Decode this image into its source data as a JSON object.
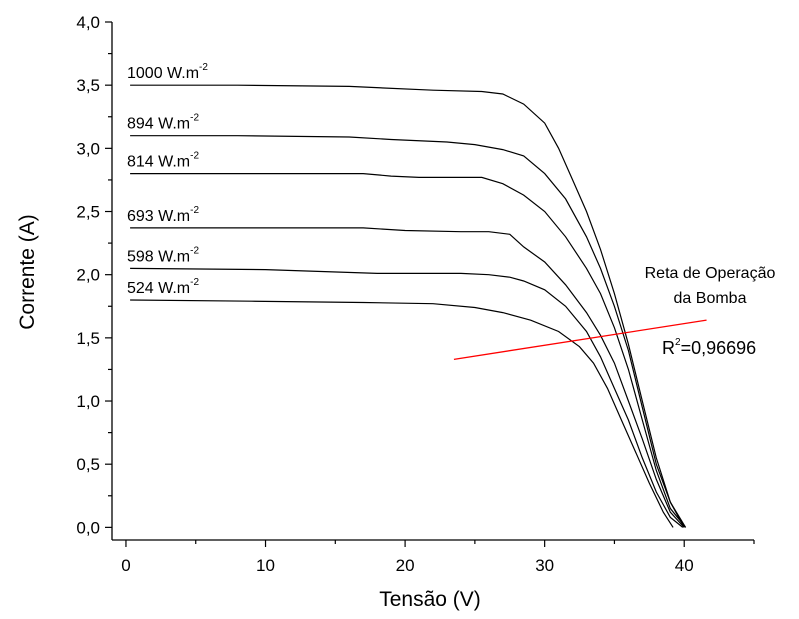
{
  "chart_data": {
    "type": "line",
    "title": "",
    "xlabel": "Tensão (V)",
    "ylabel": "Corrente (A)",
    "xlim": [
      -1,
      45
    ],
    "ylim": [
      -0.1,
      4.0
    ],
    "x_ticks": [
      0,
      10,
      20,
      30,
      40
    ],
    "x_tick_labels": [
      "0",
      "10",
      "20",
      "30",
      "40"
    ],
    "y_ticks": [
      0,
      0.5,
      1.0,
      1.5,
      2.0,
      2.5,
      3.0,
      3.5,
      4.0
    ],
    "y_tick_labels": [
      "0,0",
      "0,5",
      "1,0",
      "1,5",
      "2,0",
      "2,5",
      "3,0",
      "3,5",
      "4,0"
    ],
    "grid": false,
    "series": [
      {
        "name": "1000 W.m-2",
        "label_main": "1000 W.m",
        "label_sup": "-2",
        "points": [
          [
            0.3,
            3.5
          ],
          [
            8,
            3.5
          ],
          [
            16,
            3.49
          ],
          [
            22,
            3.46
          ],
          [
            25.5,
            3.45
          ],
          [
            27,
            3.43
          ],
          [
            28.5,
            3.35
          ],
          [
            30,
            3.2
          ],
          [
            31,
            3.0
          ],
          [
            32,
            2.75
          ],
          [
            33,
            2.5
          ],
          [
            34,
            2.2
          ],
          [
            35,
            1.85
          ],
          [
            36,
            1.45
          ],
          [
            37,
            1.0
          ],
          [
            38,
            0.55
          ],
          [
            39,
            0.2
          ],
          [
            40,
            0.0
          ]
        ]
      },
      {
        "name": "894 W.m-2",
        "label_main": "894 W.m",
        "label_sup": "-2",
        "points": [
          [
            0.3,
            3.1
          ],
          [
            8,
            3.1
          ],
          [
            16,
            3.09
          ],
          [
            19,
            3.07
          ],
          [
            23,
            3.05
          ],
          [
            25,
            3.03
          ],
          [
            27,
            2.99
          ],
          [
            28.5,
            2.94
          ],
          [
            30,
            2.8
          ],
          [
            31.5,
            2.6
          ],
          [
            33,
            2.3
          ],
          [
            34,
            2.05
          ],
          [
            35,
            1.75
          ],
          [
            36,
            1.4
          ],
          [
            37,
            0.95
          ],
          [
            38,
            0.5
          ],
          [
            39,
            0.2
          ],
          [
            40.1,
            0.0
          ]
        ]
      },
      {
        "name": "814 W.m-2",
        "label_main": "814 W.m",
        "label_sup": "-2",
        "points": [
          [
            0.3,
            2.8
          ],
          [
            8,
            2.8
          ],
          [
            17,
            2.8
          ],
          [
            19,
            2.78
          ],
          [
            21,
            2.77
          ],
          [
            25.5,
            2.77
          ],
          [
            27,
            2.72
          ],
          [
            28.5,
            2.63
          ],
          [
            30,
            2.5
          ],
          [
            31.5,
            2.3
          ],
          [
            33,
            2.05
          ],
          [
            34,
            1.85
          ],
          [
            35,
            1.58
          ],
          [
            36,
            1.25
          ],
          [
            37,
            0.85
          ],
          [
            38,
            0.45
          ],
          [
            39,
            0.15
          ],
          [
            40.1,
            0.0
          ]
        ]
      },
      {
        "name": "693 W.m-2",
        "label_main": "693 W.m",
        "label_sup": "-2",
        "points": [
          [
            0.3,
            2.37
          ],
          [
            10,
            2.37
          ],
          [
            17,
            2.37
          ],
          [
            20,
            2.35
          ],
          [
            24,
            2.34
          ],
          [
            26,
            2.34
          ],
          [
            27.5,
            2.32
          ],
          [
            28.5,
            2.22
          ],
          [
            30,
            2.1
          ],
          [
            31.5,
            1.92
          ],
          [
            33,
            1.7
          ],
          [
            34,
            1.52
          ],
          [
            35,
            1.3
          ],
          [
            36,
            1.0
          ],
          [
            37,
            0.7
          ],
          [
            38,
            0.38
          ],
          [
            39,
            0.12
          ],
          [
            40,
            0.0
          ]
        ]
      },
      {
        "name": "598 W.m-2",
        "label_main": "598 W.m",
        "label_sup": "-2",
        "points": [
          [
            0.3,
            2.05
          ],
          [
            10,
            2.04
          ],
          [
            18,
            2.01
          ],
          [
            24,
            2.01
          ],
          [
            26,
            2.0
          ],
          [
            27.5,
            1.98
          ],
          [
            28.5,
            1.95
          ],
          [
            30,
            1.88
          ],
          [
            31.5,
            1.75
          ],
          [
            33,
            1.55
          ],
          [
            34,
            1.35
          ],
          [
            35,
            1.1
          ],
          [
            36,
            0.85
          ],
          [
            37,
            0.55
          ],
          [
            38,
            0.28
          ],
          [
            39,
            0.08
          ],
          [
            39.9,
            0.0
          ]
        ]
      },
      {
        "name": "524 W.m-2",
        "label_main": "524 W.m",
        "label_sup": "-2",
        "points": [
          [
            0.3,
            1.8
          ],
          [
            9,
            1.79
          ],
          [
            17,
            1.78
          ],
          [
            22,
            1.77
          ],
          [
            25,
            1.74
          ],
          [
            27,
            1.7
          ],
          [
            29,
            1.64
          ],
          [
            31,
            1.55
          ],
          [
            32.5,
            1.43
          ],
          [
            33.5,
            1.3
          ],
          [
            34.5,
            1.1
          ],
          [
            35.5,
            0.85
          ],
          [
            36.5,
            0.6
          ],
          [
            37.5,
            0.35
          ],
          [
            38.5,
            0.12
          ],
          [
            39.2,
            0.0
          ]
        ]
      }
    ],
    "operating_line": {
      "color": "#ff0000",
      "from": [
        23.5,
        1.33
      ],
      "to": [
        41.6,
        1.64
      ],
      "label_lines": [
        "Reta de Operação",
        "da Bomba"
      ],
      "r2_main": "R",
      "r2_sup": "2",
      "r2_value": "=0,96696"
    }
  }
}
